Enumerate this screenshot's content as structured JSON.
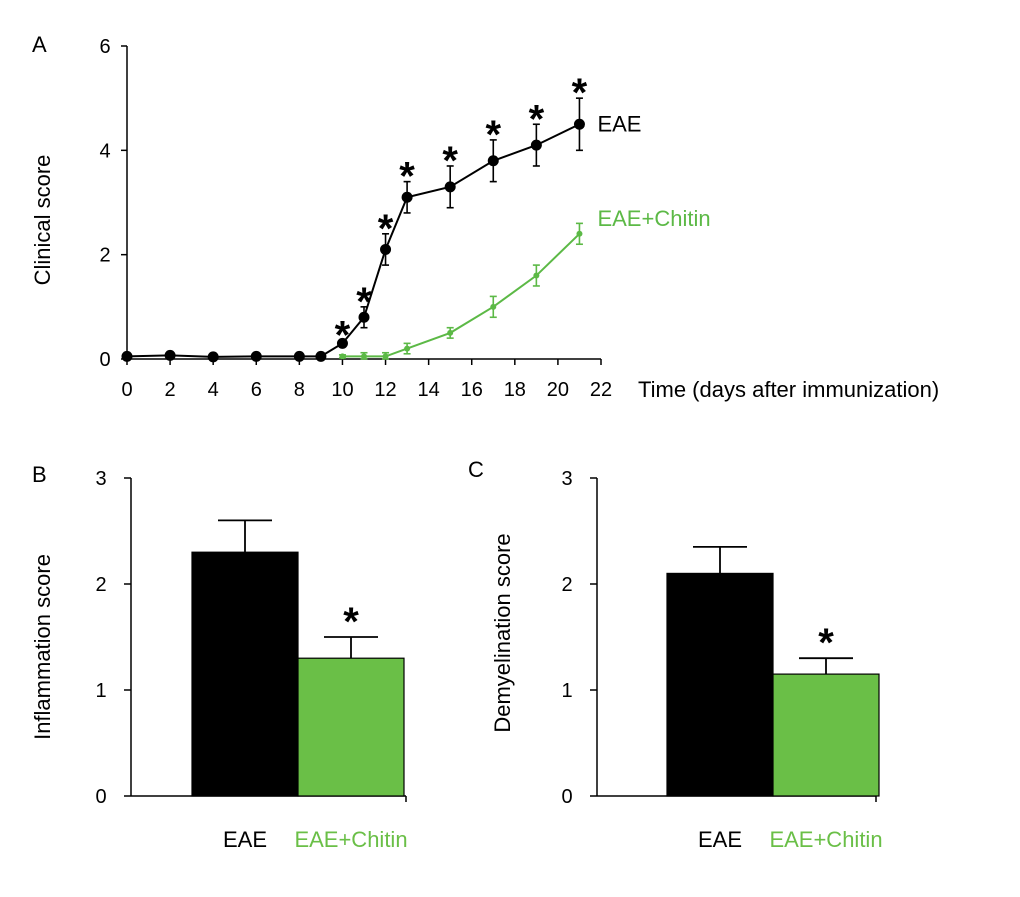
{
  "colors": {
    "eae": "#000000",
    "chitin_line": "#5cb946",
    "chitin_bar": "#6abf47",
    "axis": "#000000"
  },
  "chart_data": [
    {
      "panel": "A",
      "type": "line",
      "xlabel": "Time (days after immunization)",
      "ylabel": "Clinical score",
      "xlim": [
        0,
        22
      ],
      "ylim": [
        0,
        6
      ],
      "xticks": [
        0,
        2,
        4,
        6,
        8,
        10,
        12,
        14,
        16,
        18,
        20,
        22
      ],
      "yticks": [
        0,
        2,
        4,
        6
      ],
      "significance_marker": "*",
      "series": [
        {
          "name": "EAE",
          "color": "#000000",
          "x": [
            0,
            2,
            4,
            6,
            8,
            9,
            10,
            11,
            12,
            13,
            15,
            17,
            19,
            21
          ],
          "y": [
            0.05,
            0.07,
            0.04,
            0.05,
            0.05,
            0.05,
            0.3,
            0.8,
            2.1,
            3.1,
            3.3,
            3.8,
            4.1,
            4.5
          ],
          "err": [
            0,
            0,
            0,
            0,
            0,
            0,
            0.05,
            0.2,
            0.3,
            0.3,
            0.4,
            0.4,
            0.4,
            0.5
          ],
          "significant": [
            false,
            false,
            false,
            false,
            false,
            false,
            true,
            true,
            true,
            true,
            true,
            true,
            true,
            true
          ]
        },
        {
          "name": "EAE+Chitin",
          "color": "#5cb946",
          "x": [
            10,
            11,
            12,
            13,
            15,
            17,
            19,
            21
          ],
          "y": [
            0.05,
            0.05,
            0.05,
            0.2,
            0.5,
            1.0,
            1.6,
            2.4
          ],
          "err": [
            0.03,
            0.07,
            0.07,
            0.1,
            0.1,
            0.2,
            0.2,
            0.2
          ]
        }
      ]
    },
    {
      "panel": "B",
      "type": "bar",
      "ylabel": "Inflammation score",
      "ylim": [
        0,
        3
      ],
      "yticks": [
        0,
        1,
        2,
        3
      ],
      "categories": [
        "EAE",
        "EAE+Chitin"
      ],
      "values": [
        2.3,
        1.3
      ],
      "err": [
        0.3,
        0.2
      ],
      "significant": [
        false,
        true
      ],
      "colors": [
        "#000000",
        "#6abf47"
      ]
    },
    {
      "panel": "C",
      "type": "bar",
      "ylabel": "Demyelination score",
      "ylim": [
        0,
        3
      ],
      "yticks": [
        0,
        1,
        2,
        3
      ],
      "categories": [
        "EAE",
        "EAE+Chitin"
      ],
      "values": [
        2.1,
        1.15
      ],
      "err": [
        0.25,
        0.15
      ],
      "significant": [
        false,
        true
      ],
      "colors": [
        "#000000",
        "#6abf47"
      ]
    }
  ]
}
